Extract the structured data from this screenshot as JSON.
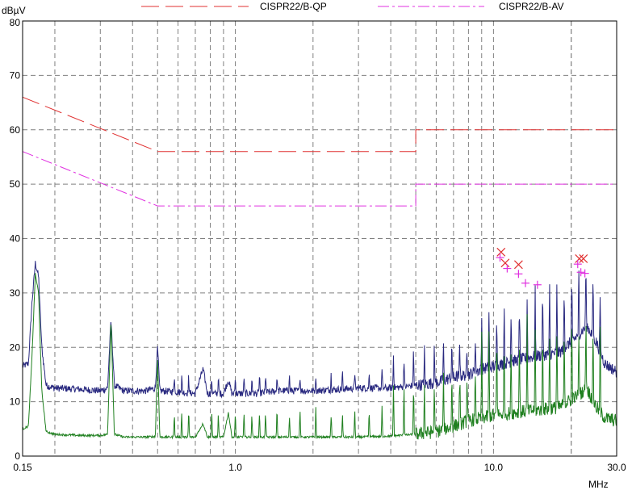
{
  "chart_data": {
    "type": "line",
    "title": "",
    "ylabel": "dBµV",
    "xlabel": "MHz",
    "x_scale": "log",
    "xlim": [
      0.15,
      30.0
    ],
    "ylim": [
      0,
      80
    ],
    "x_tick_labels": [
      {
        "value": 0.15,
        "label": "0.15"
      },
      {
        "value": 1.0,
        "label": "1.0"
      },
      {
        "value": 10.0,
        "label": "10.0"
      },
      {
        "value": 30.0,
        "label": "30.0"
      }
    ],
    "y_ticks": [
      0,
      10,
      20,
      30,
      40,
      50,
      60,
      70,
      80
    ],
    "grid": true,
    "legend_position": "top",
    "series": [
      {
        "name": "CISPR22/B-QP",
        "style": "long-dash",
        "color": "#e03030",
        "points": [
          [
            0.15,
            66
          ],
          [
            0.5,
            56
          ],
          [
            5.0,
            56
          ],
          [
            5.0,
            60
          ],
          [
            30.0,
            60
          ]
        ]
      },
      {
        "name": "CISPR22/B-AV",
        "style": "dash-dot",
        "color": "#e030e0",
        "points": [
          [
            0.15,
            56
          ],
          [
            0.5,
            46
          ],
          [
            5.0,
            46
          ],
          [
            5.0,
            50
          ],
          [
            30.0,
            50
          ]
        ]
      }
    ],
    "measured_traces": [
      {
        "id": "peak",
        "color": "#2a2a80",
        "points": [
          [
            0.15,
            16.5
          ],
          [
            0.158,
            17
          ],
          [
            0.163,
            28
          ],
          [
            0.168,
            35.5
          ],
          [
            0.173,
            33
          ],
          [
            0.178,
            20
          ],
          [
            0.185,
            13
          ],
          [
            0.2,
            12.5
          ],
          [
            0.25,
            12.3
          ],
          [
            0.3,
            12
          ],
          [
            0.32,
            12.5
          ],
          [
            0.33,
            25
          ],
          [
            0.34,
            13
          ],
          [
            0.37,
            12
          ],
          [
            0.45,
            12
          ],
          [
            0.49,
            12.5
          ],
          [
            0.5,
            20
          ],
          [
            0.51,
            12
          ],
          [
            0.6,
            11.8
          ],
          [
            0.7,
            11.5
          ],
          [
            0.75,
            16
          ],
          [
            0.78,
            11.5
          ],
          [
            0.9,
            11.5
          ],
          [
            0.94,
            14
          ],
          [
            0.97,
            11.5
          ],
          [
            1.2,
            11.5
          ],
          [
            1.5,
            12
          ],
          [
            2.0,
            12
          ],
          [
            3.0,
            12.5
          ],
          [
            4.0,
            12.5
          ],
          [
            5.0,
            13
          ],
          [
            6.0,
            13.5
          ],
          [
            7.0,
            14.5
          ],
          [
            8.0,
            15
          ],
          [
            9.0,
            16
          ],
          [
            10.0,
            16.5
          ],
          [
            12.0,
            17.5
          ],
          [
            15.0,
            18.5
          ],
          [
            18.0,
            19
          ],
          [
            21.0,
            22
          ],
          [
            23.0,
            24
          ],
          [
            25.0,
            21
          ],
          [
            27.0,
            17
          ],
          [
            30.0,
            15.5
          ]
        ]
      },
      {
        "id": "average",
        "color": "#208020",
        "points": [
          [
            0.15,
            5
          ],
          [
            0.158,
            5.5
          ],
          [
            0.163,
            18
          ],
          [
            0.168,
            33.5
          ],
          [
            0.173,
            30
          ],
          [
            0.178,
            12
          ],
          [
            0.185,
            4.5
          ],
          [
            0.2,
            4
          ],
          [
            0.25,
            3.8
          ],
          [
            0.3,
            3.8
          ],
          [
            0.32,
            4
          ],
          [
            0.33,
            25
          ],
          [
            0.34,
            4
          ],
          [
            0.37,
            3.5
          ],
          [
            0.45,
            3.5
          ],
          [
            0.49,
            3.6
          ],
          [
            0.5,
            18
          ],
          [
            0.51,
            3.5
          ],
          [
            0.6,
            3.5
          ],
          [
            0.7,
            3.5
          ],
          [
            0.75,
            6
          ],
          [
            0.78,
            3.5
          ],
          [
            0.9,
            3.5
          ],
          [
            0.94,
            8
          ],
          [
            0.97,
            3.5
          ],
          [
            1.2,
            3.5
          ],
          [
            1.5,
            3.5
          ],
          [
            2.0,
            3.5
          ],
          [
            3.0,
            3.5
          ],
          [
            4.0,
            3.7
          ],
          [
            5.0,
            4
          ],
          [
            6.0,
            4.5
          ],
          [
            7.0,
            5.5
          ],
          [
            8.0,
            6.5
          ],
          [
            9.0,
            7
          ],
          [
            10.0,
            7.5
          ],
          [
            12.0,
            8
          ],
          [
            15.0,
            8.5
          ],
          [
            18.0,
            9
          ],
          [
            21.0,
            11
          ],
          [
            23.0,
            12.5
          ],
          [
            25.0,
            9
          ],
          [
            27.0,
            7
          ],
          [
            30.0,
            6.5
          ]
        ]
      }
    ],
    "spike_frequencies": [
      0.58,
      0.62,
      0.66,
      0.81,
      0.86,
      1.0,
      1.08,
      1.16,
      1.24,
      1.31,
      1.45,
      1.62,
      1.78,
      2.05,
      2.35,
      2.6,
      2.9,
      3.3,
      3.7,
      4.1,
      4.5,
      4.9,
      5.4,
      5.9,
      6.4,
      6.9,
      7.4,
      7.9,
      8.5,
      9.0,
      9.6,
      10.3,
      11.0,
      11.7,
      12.6,
      13.5,
      14.5,
      15.5,
      16.5,
      17.6,
      18.8,
      20.1,
      21.4,
      22.8,
      24.3,
      25.9
    ],
    "qp_markers": [
      [
        10.7,
        37.5
      ],
      [
        11.1,
        35.5
      ],
      [
        12.5,
        35.2
      ],
      [
        21.5,
        36.3
      ],
      [
        22.3,
        36.3
      ]
    ],
    "av_markers": [
      [
        10.6,
        36.5
      ],
      [
        11.3,
        34.5
      ],
      [
        12.5,
        33.5
      ],
      [
        13.3,
        31.8
      ],
      [
        14.8,
        31.5
      ],
      [
        21.2,
        35.3
      ],
      [
        21.8,
        33.8
      ],
      [
        22.6,
        33.6
      ]
    ]
  }
}
